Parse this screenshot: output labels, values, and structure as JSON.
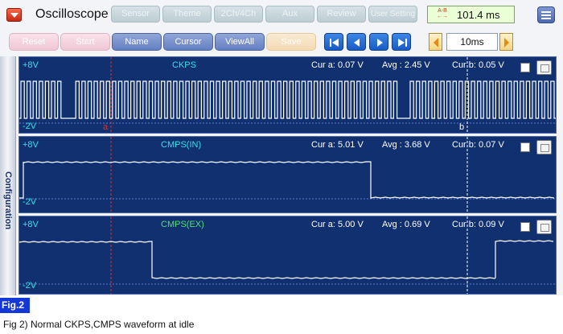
{
  "app": {
    "title": "Oscilloscope"
  },
  "toolbar": {
    "tabs": [
      "Sensor",
      "Theme",
      "2Ch/4Ch",
      "Aux",
      "Review",
      "User Setting"
    ],
    "time_readout": "101.4 ms",
    "time_icon": "AB-time-icon"
  },
  "controls": {
    "reset": "Reset",
    "start": "Start",
    "name": "Name",
    "cursor": "Cursor",
    "viewall": "ViewAll",
    "save": "Save",
    "nav_icons": [
      "skip-first-icon",
      "step-back-icon",
      "step-forward-icon",
      "skip-last-icon"
    ],
    "time_div": "10ms"
  },
  "sidebar": {
    "label": "Configuration"
  },
  "channels": [
    {
      "name": "CKPS",
      "vmax": "+8V",
      "vmin": "-2V",
      "cur_a": "Cur a: 0.07 V",
      "avg": "Avg : 2.45 V",
      "cur_b": "Cur b: 0.05 V"
    },
    {
      "name": "CMPS(IN)",
      "vmax": "+8V",
      "vmin": "-2V",
      "cur_a": "Cur a: 5.01 V",
      "avg": "Avg : 3.68 V",
      "cur_b": "Cur b: 0.07 V"
    },
    {
      "name": "CMPS(EX)",
      "vmax": "+8V",
      "vmin": "-2V",
      "cur_a": "Cur a: 5.00 V",
      "avg": "Avg : 0.69 V",
      "cur_b": "Cur b: 0.09 V"
    }
  ],
  "cursors": {
    "a": "a",
    "b": "b"
  },
  "colors": {
    "panel_bg": "#113070",
    "trace": "#ffffff",
    "label_cyan": "#35e0e6",
    "label_green": "#4de070",
    "cursor_a": "#e0302e",
    "cursor_b": "#ffffff"
  },
  "figure": {
    "label": "Fig.2",
    "caption": "Fig 2) Normal CKPS,CMPS waveform at idle"
  }
}
